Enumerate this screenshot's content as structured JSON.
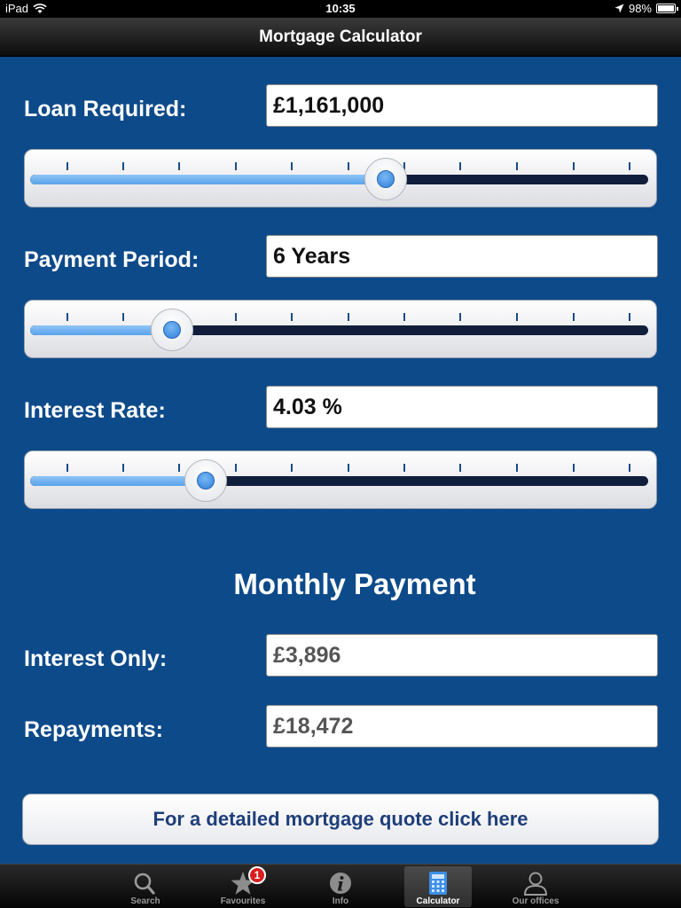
{
  "status_bar": {
    "device": "iPad",
    "time": "10:35",
    "battery_text": "98%",
    "battery_level": 0.98
  },
  "nav": {
    "title": "Mortgage Calculator"
  },
  "loan": {
    "label": "Loan Required:",
    "value": "£1,161,000",
    "slider_fraction": 0.575
  },
  "period": {
    "label": "Payment Period:",
    "value": "6 Years",
    "slider_fraction": 0.23
  },
  "rate": {
    "label": "Interest Rate:",
    "value": "4.03 %",
    "slider_fraction": 0.284
  },
  "monthly": {
    "title": "Monthly Payment",
    "interest_only_label": "Interest Only:",
    "interest_only_value": "£3,896",
    "repayments_label": "Repayments:",
    "repayments_value": "£18,472"
  },
  "quote_button": {
    "label": "For a detailed mortgage quote click here"
  },
  "tab_bar": {
    "tabs": [
      {
        "label": "Search",
        "icon": "search-icon"
      },
      {
        "label": "Favourites",
        "icon": "star-icon",
        "badge": "1"
      },
      {
        "label": "Info",
        "icon": "info-icon"
      },
      {
        "label": "Calculator",
        "icon": "calculator-icon",
        "active": true
      },
      {
        "label": "Our offices",
        "icon": "person-icon"
      }
    ]
  },
  "colors": {
    "background": "#0d4a8a",
    "track_fill": "#5aa2ea",
    "track_empty": "#101e3b",
    "badge": "#d81e1e",
    "button_text": "#1f3f7a"
  }
}
